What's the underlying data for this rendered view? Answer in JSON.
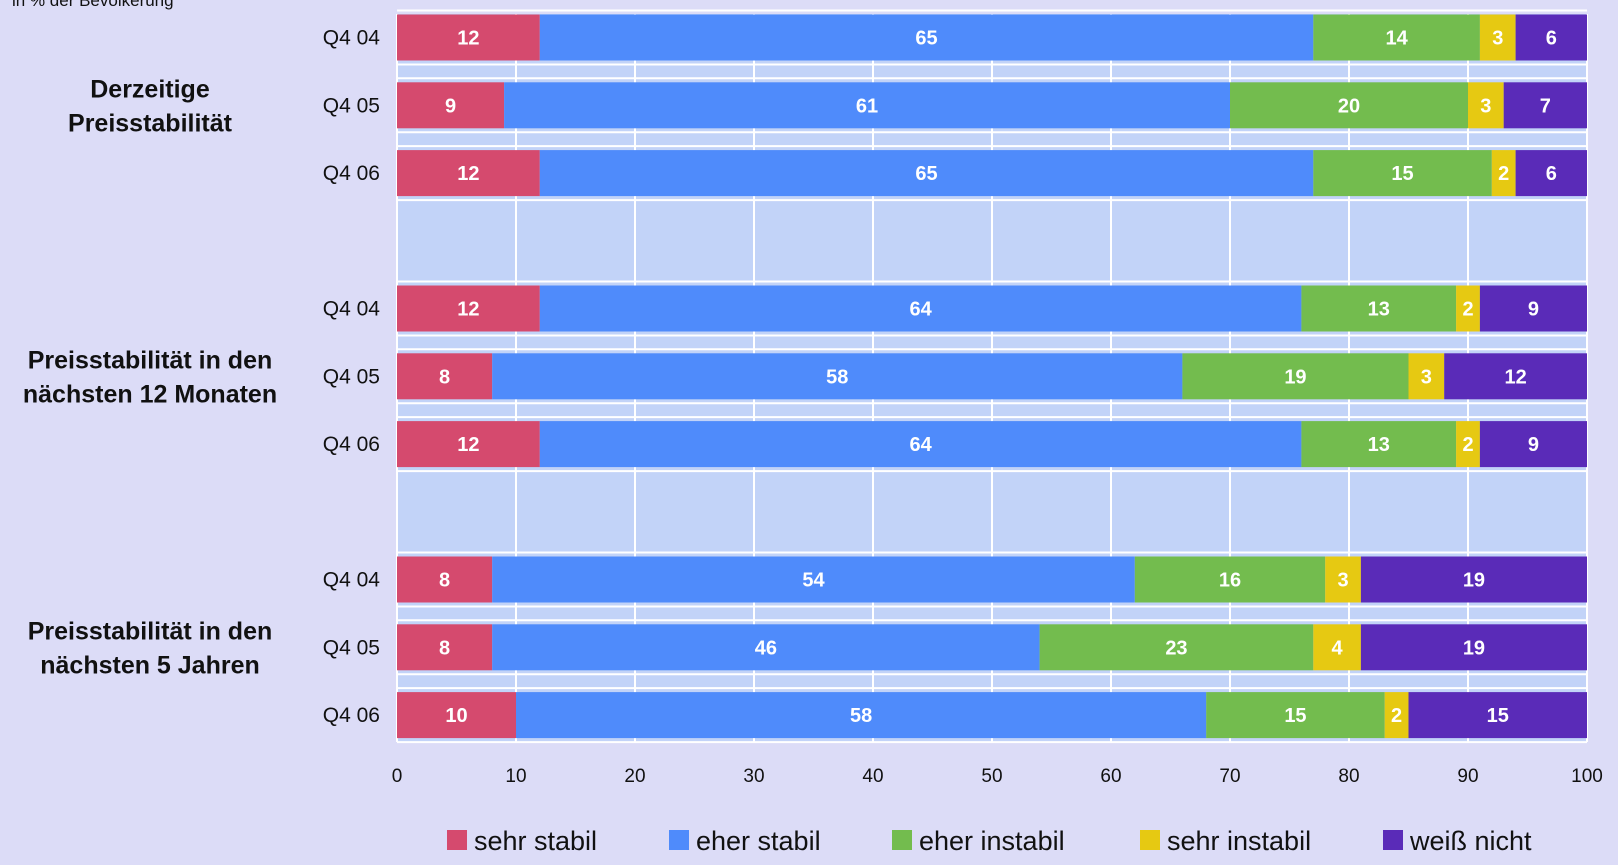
{
  "chart_data": {
    "type": "bar",
    "orientation": "horizontal-stacked",
    "subtitle": "in % der Bevölkerung",
    "xlim": [
      0,
      100
    ],
    "xticks": [
      0,
      10,
      20,
      30,
      40,
      50,
      60,
      70,
      80,
      90,
      100
    ],
    "grid": true,
    "legend_position": "bottom",
    "series_meta": [
      {
        "name": "sehr stabil",
        "color": "#d54a6e"
      },
      {
        "name": "eher stabil",
        "color": "#4f8bfb"
      },
      {
        "name": "eher instabil",
        "color": "#73bc4e"
      },
      {
        "name": "sehr instabil",
        "color": "#e6c912"
      },
      {
        "name": "weiß nicht",
        "color": "#5a2bb8"
      }
    ],
    "groups": [
      {
        "label": [
          "Derzeitige",
          "Preisstabilität"
        ],
        "rows": [
          {
            "label": "Q4 04",
            "values": [
              12,
              65,
              14,
              3,
              6
            ]
          },
          {
            "label": "Q4 05",
            "values": [
              9,
              61,
              20,
              3,
              7
            ]
          },
          {
            "label": "Q4 06",
            "values": [
              12,
              65,
              15,
              2,
              6
            ]
          }
        ]
      },
      {
        "label": [
          "Preisstabilität in den",
          "nächsten 12 Monaten"
        ],
        "rows": [
          {
            "label": "Q4 04",
            "values": [
              12,
              64,
              13,
              2,
              9
            ]
          },
          {
            "label": "Q4 05",
            "values": [
              8,
              58,
              19,
              3,
              12
            ]
          },
          {
            "label": "Q4 06",
            "values": [
              12,
              64,
              13,
              2,
              9
            ]
          }
        ]
      },
      {
        "label": [
          "Preisstabilität in den",
          "nächsten 5 Jahren"
        ],
        "rows": [
          {
            "label": "Q4 04",
            "values": [
              8,
              54,
              16,
              3,
              19
            ]
          },
          {
            "label": "Q4 05",
            "values": [
              8,
              46,
              23,
              4,
              19
            ]
          },
          {
            "label": "Q4 06",
            "values": [
              10,
              58,
              15,
              2,
              15
            ]
          }
        ]
      }
    ]
  },
  "colors": {
    "page_background": "#dcdcf7",
    "plot_background": "#c2d3f8",
    "gridline": "#ffffff",
    "value_text": "#ffffff"
  }
}
